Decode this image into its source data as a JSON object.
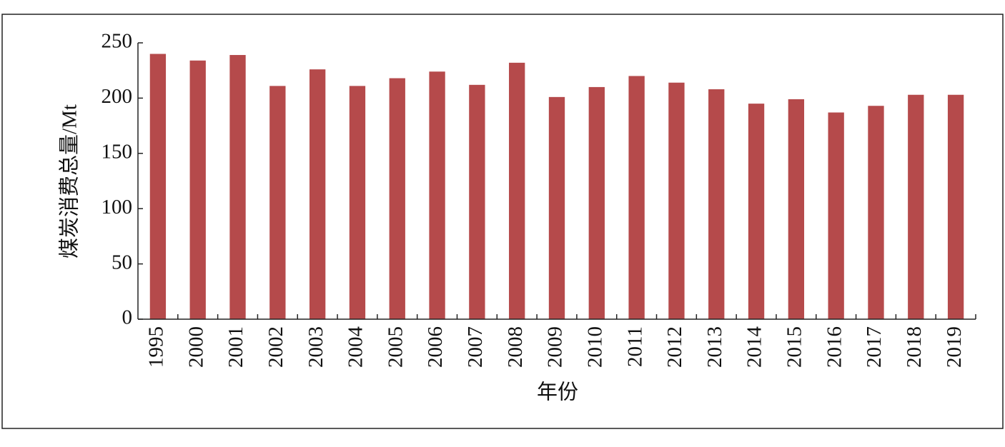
{
  "chart_data": {
    "type": "bar",
    "categories": [
      "1995",
      "2000",
      "2001",
      "2002",
      "2003",
      "2004",
      "2005",
      "2006",
      "2007",
      "2008",
      "2009",
      "2010",
      "2011",
      "2012",
      "2013",
      "2014",
      "2015",
      "2016",
      "2017",
      "2018",
      "2019"
    ],
    "values": [
      240,
      234,
      239,
      211,
      226,
      211,
      218,
      224,
      212,
      232,
      201,
      210,
      220,
      214,
      208,
      195,
      199,
      187,
      193,
      203,
      203
    ],
    "color": "#b54a4b",
    "x_label": "年份",
    "y_label": "煤炭消费总量/Mt",
    "ylim": [
      0,
      250
    ],
    "yticks": [
      0,
      50,
      100,
      150,
      200,
      250
    ],
    "grid": false
  }
}
